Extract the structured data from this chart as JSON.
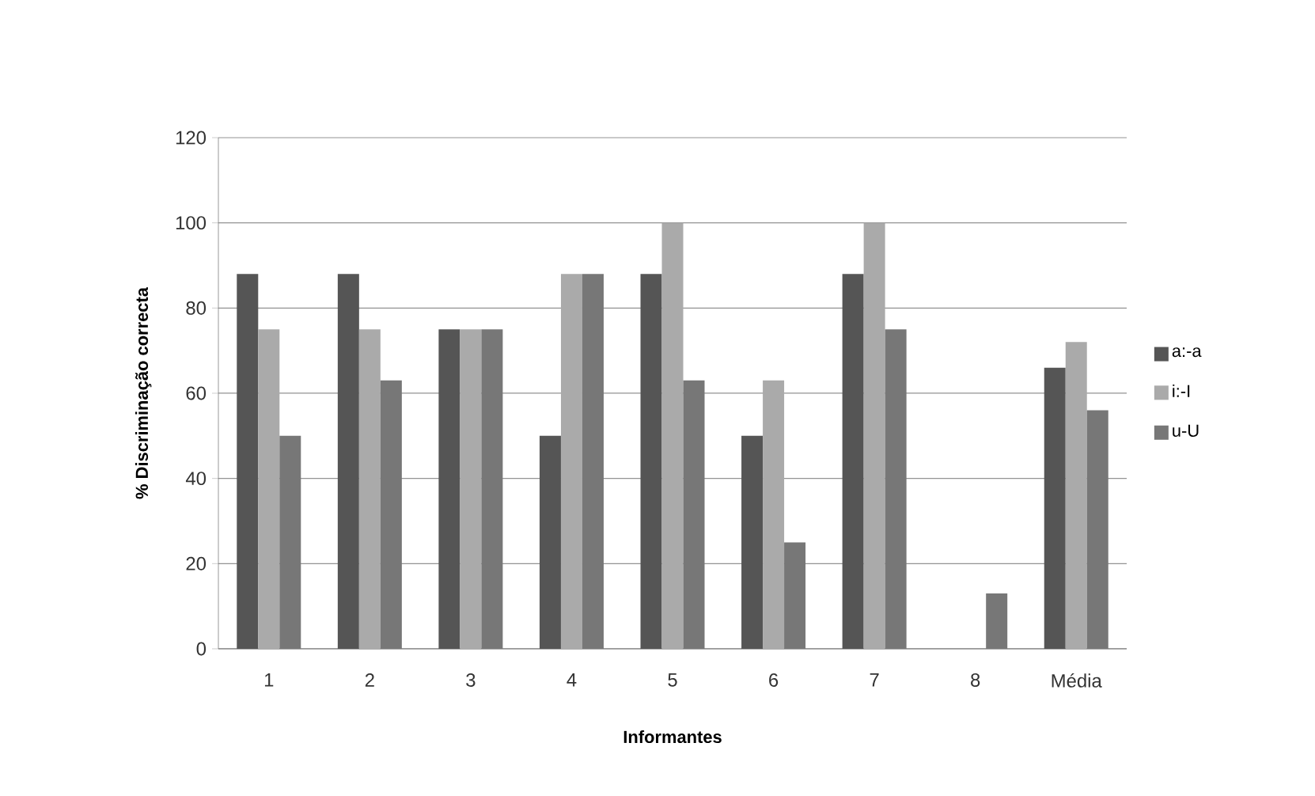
{
  "chart_data": {
    "type": "bar",
    "xlabel": "Informantes",
    "ylabel": "% Discriminação correcta",
    "categories": [
      "1",
      "2",
      "3",
      "4",
      "5",
      "6",
      "7",
      "8",
      "Média"
    ],
    "series": [
      {
        "name": "a:-a",
        "color": "#555555",
        "values": [
          88,
          88,
          75,
          50,
          88,
          50,
          88,
          0,
          66
        ]
      },
      {
        "name": "i:-I",
        "color": "#aaaaaa",
        "values": [
          75,
          75,
          75,
          88,
          100,
          63,
          100,
          0,
          72
        ]
      },
      {
        "name": "u-U",
        "color": "#777777",
        "values": [
          50,
          63,
          75,
          88,
          63,
          25,
          75,
          13,
          56
        ]
      }
    ],
    "ylim": [
      0,
      120
    ],
    "yticks": [
      0,
      20,
      40,
      60,
      80,
      100,
      120
    ],
    "grid": "y",
    "legend": "right"
  }
}
